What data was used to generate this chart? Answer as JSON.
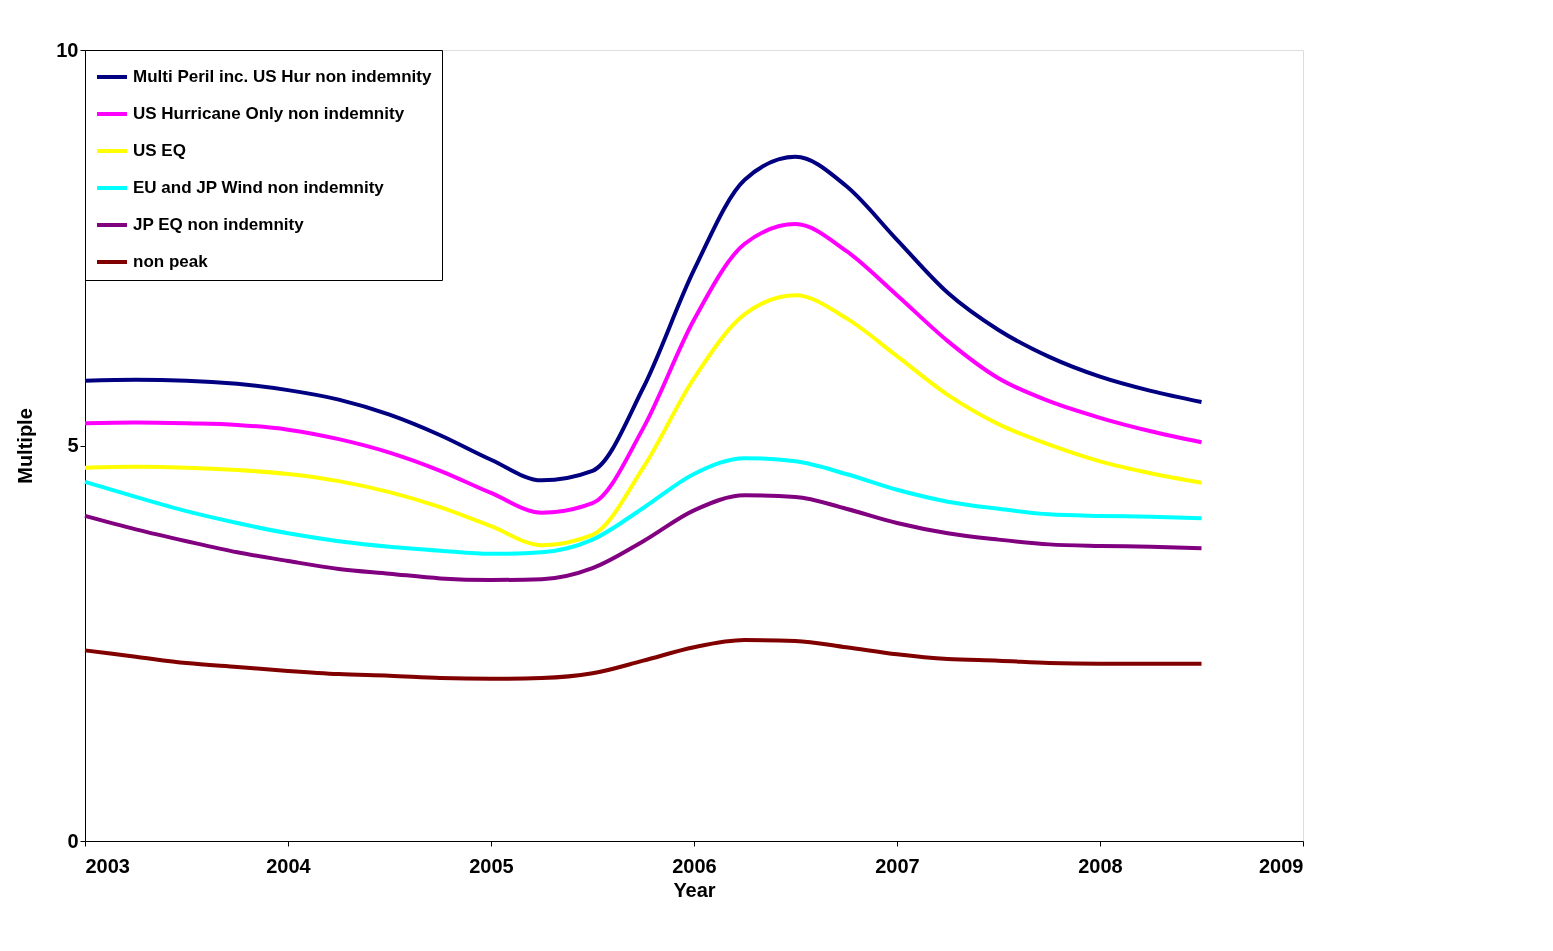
{
  "chart_data": {
    "type": "line",
    "xlabel": "Year",
    "ylabel": "Multiple",
    "x": [
      2003,
      2003.25,
      2003.5,
      2003.75,
      2004,
      2004.25,
      2004.5,
      2004.75,
      2005,
      2005.25,
      2005.5,
      2005.75,
      2006,
      2006.25,
      2006.5,
      2006.75,
      2007,
      2007.25,
      2007.5,
      2007.75,
      2008,
      2008.25,
      2008.5
    ],
    "series": [
      {
        "name": "Multi Peril inc. US Hur non indemnity",
        "color": "#000080",
        "values": [
          5.82,
          5.83,
          5.82,
          5.78,
          5.7,
          5.58,
          5.39,
          5.13,
          4.82,
          4.56,
          4.68,
          5.73,
          7.22,
          8.36,
          8.65,
          8.28,
          7.6,
          6.93,
          6.46,
          6.12,
          5.87,
          5.69,
          5.55
        ]
      },
      {
        "name": "US Hurricane Only non indemnity",
        "color": "#ff00ff",
        "values": [
          5.28,
          5.29,
          5.28,
          5.26,
          5.2,
          5.08,
          4.91,
          4.68,
          4.4,
          4.15,
          4.27,
          5.22,
          6.59,
          7.55,
          7.8,
          7.46,
          6.9,
          6.32,
          5.85,
          5.56,
          5.35,
          5.18,
          5.04
        ]
      },
      {
        "name": "US EQ",
        "color": "#ffff00",
        "values": [
          4.72,
          4.73,
          4.72,
          4.69,
          4.64,
          4.55,
          4.41,
          4.22,
          3.98,
          3.74,
          3.87,
          4.72,
          5.85,
          6.66,
          6.9,
          6.61,
          6.13,
          5.64,
          5.27,
          5.01,
          4.8,
          4.65,
          4.53
        ]
      },
      {
        "name": "EU and JP Wind non indemnity",
        "color": "#00ffff",
        "values": [
          4.54,
          4.35,
          4.17,
          4.02,
          3.89,
          3.79,
          3.72,
          3.67,
          3.63,
          3.65,
          3.81,
          4.21,
          4.64,
          4.84,
          4.8,
          4.64,
          4.44,
          4.29,
          4.2,
          4.13,
          4.11,
          4.1,
          4.08
        ]
      },
      {
        "name": "JP EQ non indemnity",
        "color": "#800080",
        "values": [
          4.11,
          3.94,
          3.79,
          3.65,
          3.54,
          3.44,
          3.38,
          3.32,
          3.3,
          3.31,
          3.45,
          3.79,
          4.18,
          4.37,
          4.35,
          4.2,
          4.02,
          3.89,
          3.81,
          3.75,
          3.73,
          3.72,
          3.7
        ]
      },
      {
        "name": "non peak",
        "color": "#800000",
        "values": [
          2.41,
          2.33,
          2.25,
          2.2,
          2.15,
          2.11,
          2.09,
          2.06,
          2.05,
          2.06,
          2.12,
          2.28,
          2.45,
          2.54,
          2.53,
          2.45,
          2.36,
          2.3,
          2.28,
          2.25,
          2.24,
          2.24,
          2.24
        ]
      }
    ],
    "xlim": [
      2003,
      2009
    ],
    "xticks": [
      2003,
      2004,
      2005,
      2006,
      2007,
      2008,
      2009
    ],
    "ylim": [
      0,
      10
    ],
    "yticks": [
      0,
      5,
      10
    ],
    "grid": false,
    "legend": "top left",
    "line_style": "solid",
    "marker": "none"
  }
}
